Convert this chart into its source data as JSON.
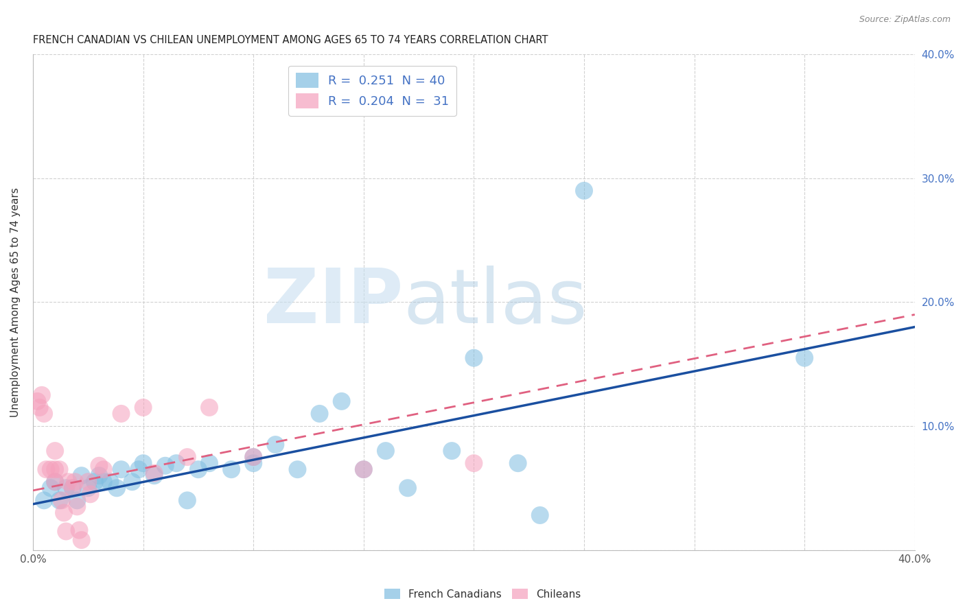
{
  "title": "FRENCH CANADIAN VS CHILEAN UNEMPLOYMENT AMONG AGES 65 TO 74 YEARS CORRELATION CHART",
  "source": "Source: ZipAtlas.com",
  "ylabel": "Unemployment Among Ages 65 to 74 years",
  "xlim": [
    0.0,
    0.4
  ],
  "ylim": [
    0.0,
    0.4
  ],
  "xticks": [
    0.0,
    0.05,
    0.1,
    0.15,
    0.2,
    0.25,
    0.3,
    0.35,
    0.4
  ],
  "yticks": [
    0.0,
    0.1,
    0.2,
    0.3,
    0.4
  ],
  "grid_color": "#cccccc",
  "background_color": "#ffffff",
  "french_canadian_color": "#7fbde0",
  "chilean_color": "#f5a0bc",
  "french_canadian_line_color": "#1a4fa0",
  "chilean_line_color": "#e06080",
  "R_fc": 0.251,
  "N_fc": 40,
  "R_ch": 0.204,
  "N_ch": 31,
  "french_canadian_points": [
    [
      0.005,
      0.04
    ],
    [
      0.008,
      0.05
    ],
    [
      0.01,
      0.055
    ],
    [
      0.012,
      0.04
    ],
    [
      0.015,
      0.05
    ],
    [
      0.018,
      0.05
    ],
    [
      0.02,
      0.04
    ],
    [
      0.022,
      0.06
    ],
    [
      0.025,
      0.05
    ],
    [
      0.028,
      0.055
    ],
    [
      0.03,
      0.06
    ],
    [
      0.032,
      0.055
    ],
    [
      0.035,
      0.055
    ],
    [
      0.038,
      0.05
    ],
    [
      0.04,
      0.065
    ],
    [
      0.045,
      0.055
    ],
    [
      0.048,
      0.065
    ],
    [
      0.05,
      0.07
    ],
    [
      0.055,
      0.06
    ],
    [
      0.06,
      0.068
    ],
    [
      0.065,
      0.07
    ],
    [
      0.07,
      0.04
    ],
    [
      0.075,
      0.065
    ],
    [
      0.08,
      0.07
    ],
    [
      0.09,
      0.065
    ],
    [
      0.1,
      0.075
    ],
    [
      0.1,
      0.07
    ],
    [
      0.11,
      0.085
    ],
    [
      0.12,
      0.065
    ],
    [
      0.13,
      0.11
    ],
    [
      0.14,
      0.12
    ],
    [
      0.15,
      0.065
    ],
    [
      0.16,
      0.08
    ],
    [
      0.17,
      0.05
    ],
    [
      0.19,
      0.08
    ],
    [
      0.2,
      0.155
    ],
    [
      0.22,
      0.07
    ],
    [
      0.23,
      0.028
    ],
    [
      0.25,
      0.29
    ],
    [
      0.35,
      0.155
    ]
  ],
  "chilean_points": [
    [
      0.002,
      0.12
    ],
    [
      0.003,
      0.115
    ],
    [
      0.004,
      0.125
    ],
    [
      0.005,
      0.11
    ],
    [
      0.006,
      0.065
    ],
    [
      0.008,
      0.065
    ],
    [
      0.01,
      0.065
    ],
    [
      0.01,
      0.08
    ],
    [
      0.01,
      0.055
    ],
    [
      0.012,
      0.065
    ],
    [
      0.013,
      0.04
    ],
    [
      0.014,
      0.03
    ],
    [
      0.015,
      0.015
    ],
    [
      0.016,
      0.055
    ],
    [
      0.018,
      0.05
    ],
    [
      0.019,
      0.055
    ],
    [
      0.02,
      0.035
    ],
    [
      0.021,
      0.016
    ],
    [
      0.022,
      0.008
    ],
    [
      0.025,
      0.055
    ],
    [
      0.026,
      0.045
    ],
    [
      0.03,
      0.068
    ],
    [
      0.032,
      0.065
    ],
    [
      0.04,
      0.11
    ],
    [
      0.05,
      0.115
    ],
    [
      0.055,
      0.062
    ],
    [
      0.07,
      0.075
    ],
    [
      0.08,
      0.115
    ],
    [
      0.1,
      0.075
    ],
    [
      0.15,
      0.065
    ],
    [
      0.2,
      0.07
    ]
  ],
  "fc_line_x": [
    0.0,
    0.4
  ],
  "fc_line_y": [
    0.037,
    0.18
  ],
  "ch_line_x": [
    0.0,
    0.4
  ],
  "ch_line_y": [
    0.048,
    0.19
  ]
}
